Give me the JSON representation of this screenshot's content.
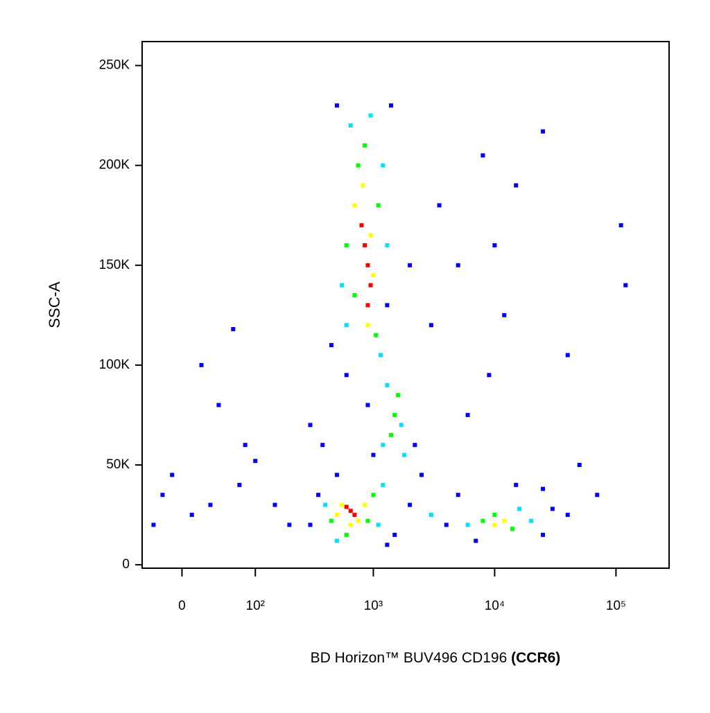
{
  "chart_data": {
    "type": "scatter",
    "xlabel": [
      "BD Horizon™ BUV496 CD196",
      "(CCR6)"
    ],
    "ylabel": "SSC-A",
    "xscale": "biexponential",
    "xlim": [
      -44,
      274000
    ],
    "ylim": [
      -1700,
      262000
    ],
    "xticks": [
      0,
      {
        "value": 100,
        "label": "10²"
      },
      {
        "value": 1000,
        "label": "10³"
      },
      {
        "value": 10000,
        "label": "10⁴"
      },
      {
        "value": 100000,
        "label": "10⁵"
      }
    ],
    "yticks": [
      0,
      {
        "value": 50000,
        "label": "50K"
      },
      {
        "value": 100000,
        "label": "100K"
      },
      {
        "value": 150000,
        "label": "150K"
      },
      {
        "value": 200000,
        "label": "200K"
      },
      {
        "value": 250000,
        "label": "250K"
      }
    ],
    "series": [
      {
        "color": "#0000ff",
        "x": [
          300,
          1500,
          350,
          2000,
          500,
          1300,
          500,
          1400,
          450,
          1300,
          2000,
          3000,
          600,
          900,
          2200,
          2500,
          1000,
          4000,
          5000,
          25000,
          30000,
          40000,
          25000,
          7000,
          15000,
          -30,
          -10,
          20,
          60,
          40,
          80,
          150,
          200,
          70,
          10,
          100,
          8000,
          15000,
          110000,
          120000,
          40000,
          25000,
          12000,
          50000,
          70000,
          5000,
          3500,
          10000,
          30,
          -20,
          300,
          380,
          9000,
          6000
        ],
        "y": [
          20000,
          15000,
          35000,
          30000,
          45000,
          10000,
          230000,
          230000,
          110000,
          130000,
          150000,
          120000,
          95000,
          80000,
          60000,
          45000,
          55000,
          20000,
          35000,
          15000,
          28000,
          25000,
          38000,
          12000,
          40000,
          20000,
          45000,
          100000,
          118000,
          80000,
          60000,
          30000,
          20000,
          40000,
          25000,
          52000,
          205000,
          190000,
          170000,
          140000,
          105000,
          217000,
          125000,
          50000,
          35000,
          150000,
          180000,
          160000,
          30000,
          35000,
          70000,
          60000,
          95000,
          75000
        ]
      },
      {
        "color": "#00e0ff",
        "x": [
          400,
          1100,
          1200,
          500,
          650,
          1200,
          600,
          1150,
          950,
          1300,
          1700,
          1200,
          1800,
          16000,
          6000,
          20000,
          3000,
          550,
          1300
        ],
        "y": [
          30000,
          20000,
          40000,
          12000,
          220000,
          200000,
          120000,
          105000,
          225000,
          90000,
          70000,
          60000,
          55000,
          28000,
          20000,
          22000,
          25000,
          140000,
          160000
        ]
      },
      {
        "color": "#00ff00",
        "x": [
          450,
          900,
          1000,
          600,
          750,
          1100,
          700,
          1050,
          850,
          1500,
          1400,
          10000,
          14000,
          8000,
          1600,
          600
        ],
        "y": [
          22000,
          22000,
          35000,
          15000,
          200000,
          180000,
          135000,
          115000,
          210000,
          75000,
          65000,
          25000,
          18000,
          22000,
          85000,
          160000
        ]
      },
      {
        "color": "#ffff00",
        "x": [
          550,
          750,
          650,
          500,
          850,
          700,
          1000,
          820,
          900,
          950,
          12000,
          10000
        ],
        "y": [
          30000,
          22000,
          20000,
          25000,
          30000,
          180000,
          145000,
          190000,
          120000,
          165000,
          22000,
          20000
        ]
      },
      {
        "color": "#ff0000",
        "x": [
          650,
          700,
          600,
          900,
          850,
          950,
          800,
          900
        ],
        "y": [
          27000,
          25000,
          29000,
          150000,
          160000,
          140000,
          170000,
          130000
        ]
      }
    ]
  }
}
